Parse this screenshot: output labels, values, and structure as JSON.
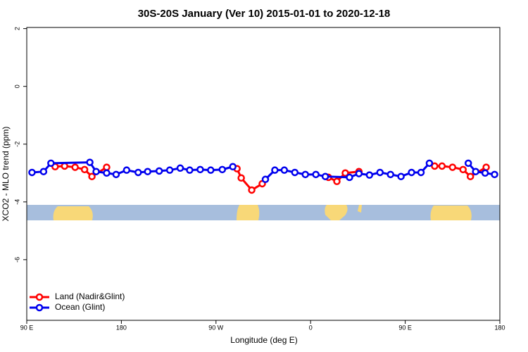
{
  "chart_data": {
    "type": "line",
    "title": "30S-20S January (Ver 10)   2015-01-01 to 2020-12-18",
    "x_label": "Longitude (deg E)",
    "y_label": "XCO2 - MLO trend (ppm)",
    "xlim": [
      90,
      540
    ],
    "ylim": [
      -8.1,
      2.04
    ],
    "xticks": [
      {
        "value": 90,
        "label": "90 E"
      },
      180,
      {
        "value": 270,
        "label": "90 W"
      },
      {
        "value": 360,
        "label": "0"
      },
      {
        "value": 450,
        "label": "90 E"
      },
      {
        "value": 540,
        "label": "180"
      }
    ],
    "yticks": [
      2,
      0,
      -2,
      -4,
      -6
    ],
    "legend": "bottom-left",
    "series": [
      {
        "name": "Land (Nadir&Glint)",
        "color": "#ff0000",
        "x": [
          117,
          126,
          136,
          145,
          152,
          166,
          null,
          290,
          294,
          304,
          314,
          null,
          377,
          385,
          393,
          406,
          null,
          478,
          485,
          495,
          505,
          512,
          527
        ],
        "values": [
          -2.78,
          -2.76,
          -2.8,
          -2.88,
          -3.12,
          -2.8,
          null,
          -2.85,
          -3.17,
          -3.59,
          -3.37,
          null,
          -3.15,
          -3.29,
          -3.0,
          -2.95,
          null,
          -2.76,
          -2.76,
          -2.8,
          -2.88,
          -3.12,
          -2.8
        ]
      },
      {
        "name": "Ocean (Glint)",
        "color": "#0000ee",
        "x": [
          95,
          106,
          113,
          150,
          156,
          166,
          175,
          185,
          196,
          205,
          216,
          226,
          236,
          245,
          255,
          265,
          276,
          286,
          null,
          317,
          326,
          335,
          345,
          355,
          365,
          374,
          397,
          406,
          416,
          426,
          436,
          446,
          456,
          465,
          473,
          null,
          510,
          517,
          526,
          535
        ],
        "values": [
          -2.98,
          -2.95,
          -2.66,
          -2.63,
          -2.95,
          -3.0,
          -3.05,
          -2.9,
          -2.98,
          -2.95,
          -2.93,
          -2.9,
          -2.83,
          -2.9,
          -2.88,
          -2.9,
          -2.88,
          -2.78,
          null,
          -3.22,
          -2.9,
          -2.9,
          -2.98,
          -3.05,
          -3.05,
          -3.12,
          -3.15,
          -3.02,
          -3.07,
          -2.98,
          -3.05,
          -3.12,
          -2.98,
          -2.98,
          -2.66,
          null,
          -2.66,
          -2.95,
          -3.0,
          -3.05
        ]
      }
    ]
  }
}
